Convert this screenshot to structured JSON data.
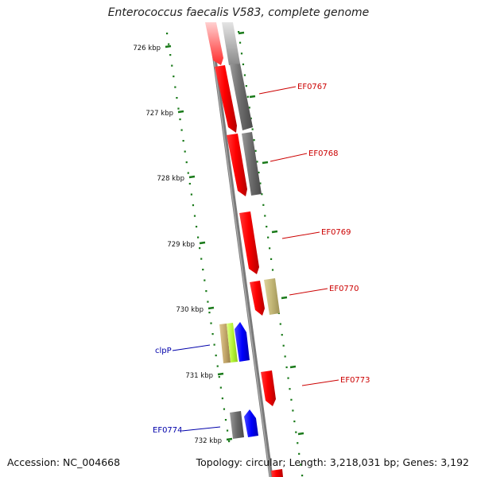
{
  "title": "Enterococcus faecalis V583, complete genome",
  "accession": "Accession: NC_004668",
  "topology": "Topology: circular; Length: 3,218,031 bp; Genes: 3,192",
  "ticks": [
    "726 kbp",
    "727 kbp",
    "728 kbp",
    "729 kbp",
    "730 kbp",
    "731 kbp",
    "732 kbp"
  ],
  "gene_labels": [
    {
      "text": "EF0767",
      "color": "#cc0000"
    },
    {
      "text": "EF0768",
      "color": "#cc0000"
    },
    {
      "text": "EF0769",
      "color": "#cc0000"
    },
    {
      "text": "EF0770",
      "color": "#cc0000"
    },
    {
      "text": "clpP",
      "color": "#0000aa"
    },
    {
      "text": "EF0773",
      "color": "#cc0000"
    },
    {
      "text": "EF0774",
      "color": "#0000aa"
    }
  ],
  "colors": {
    "backbone": "#888888",
    "dots": "#1a7a1a",
    "red_gene": "#ff0000",
    "gray_gene": "#707070",
    "olive_gene": "#c8bc7a",
    "lime_gene": "#bfff3a",
    "tan_gene": "#c8b078",
    "blue_gene": "#0000ff"
  }
}
